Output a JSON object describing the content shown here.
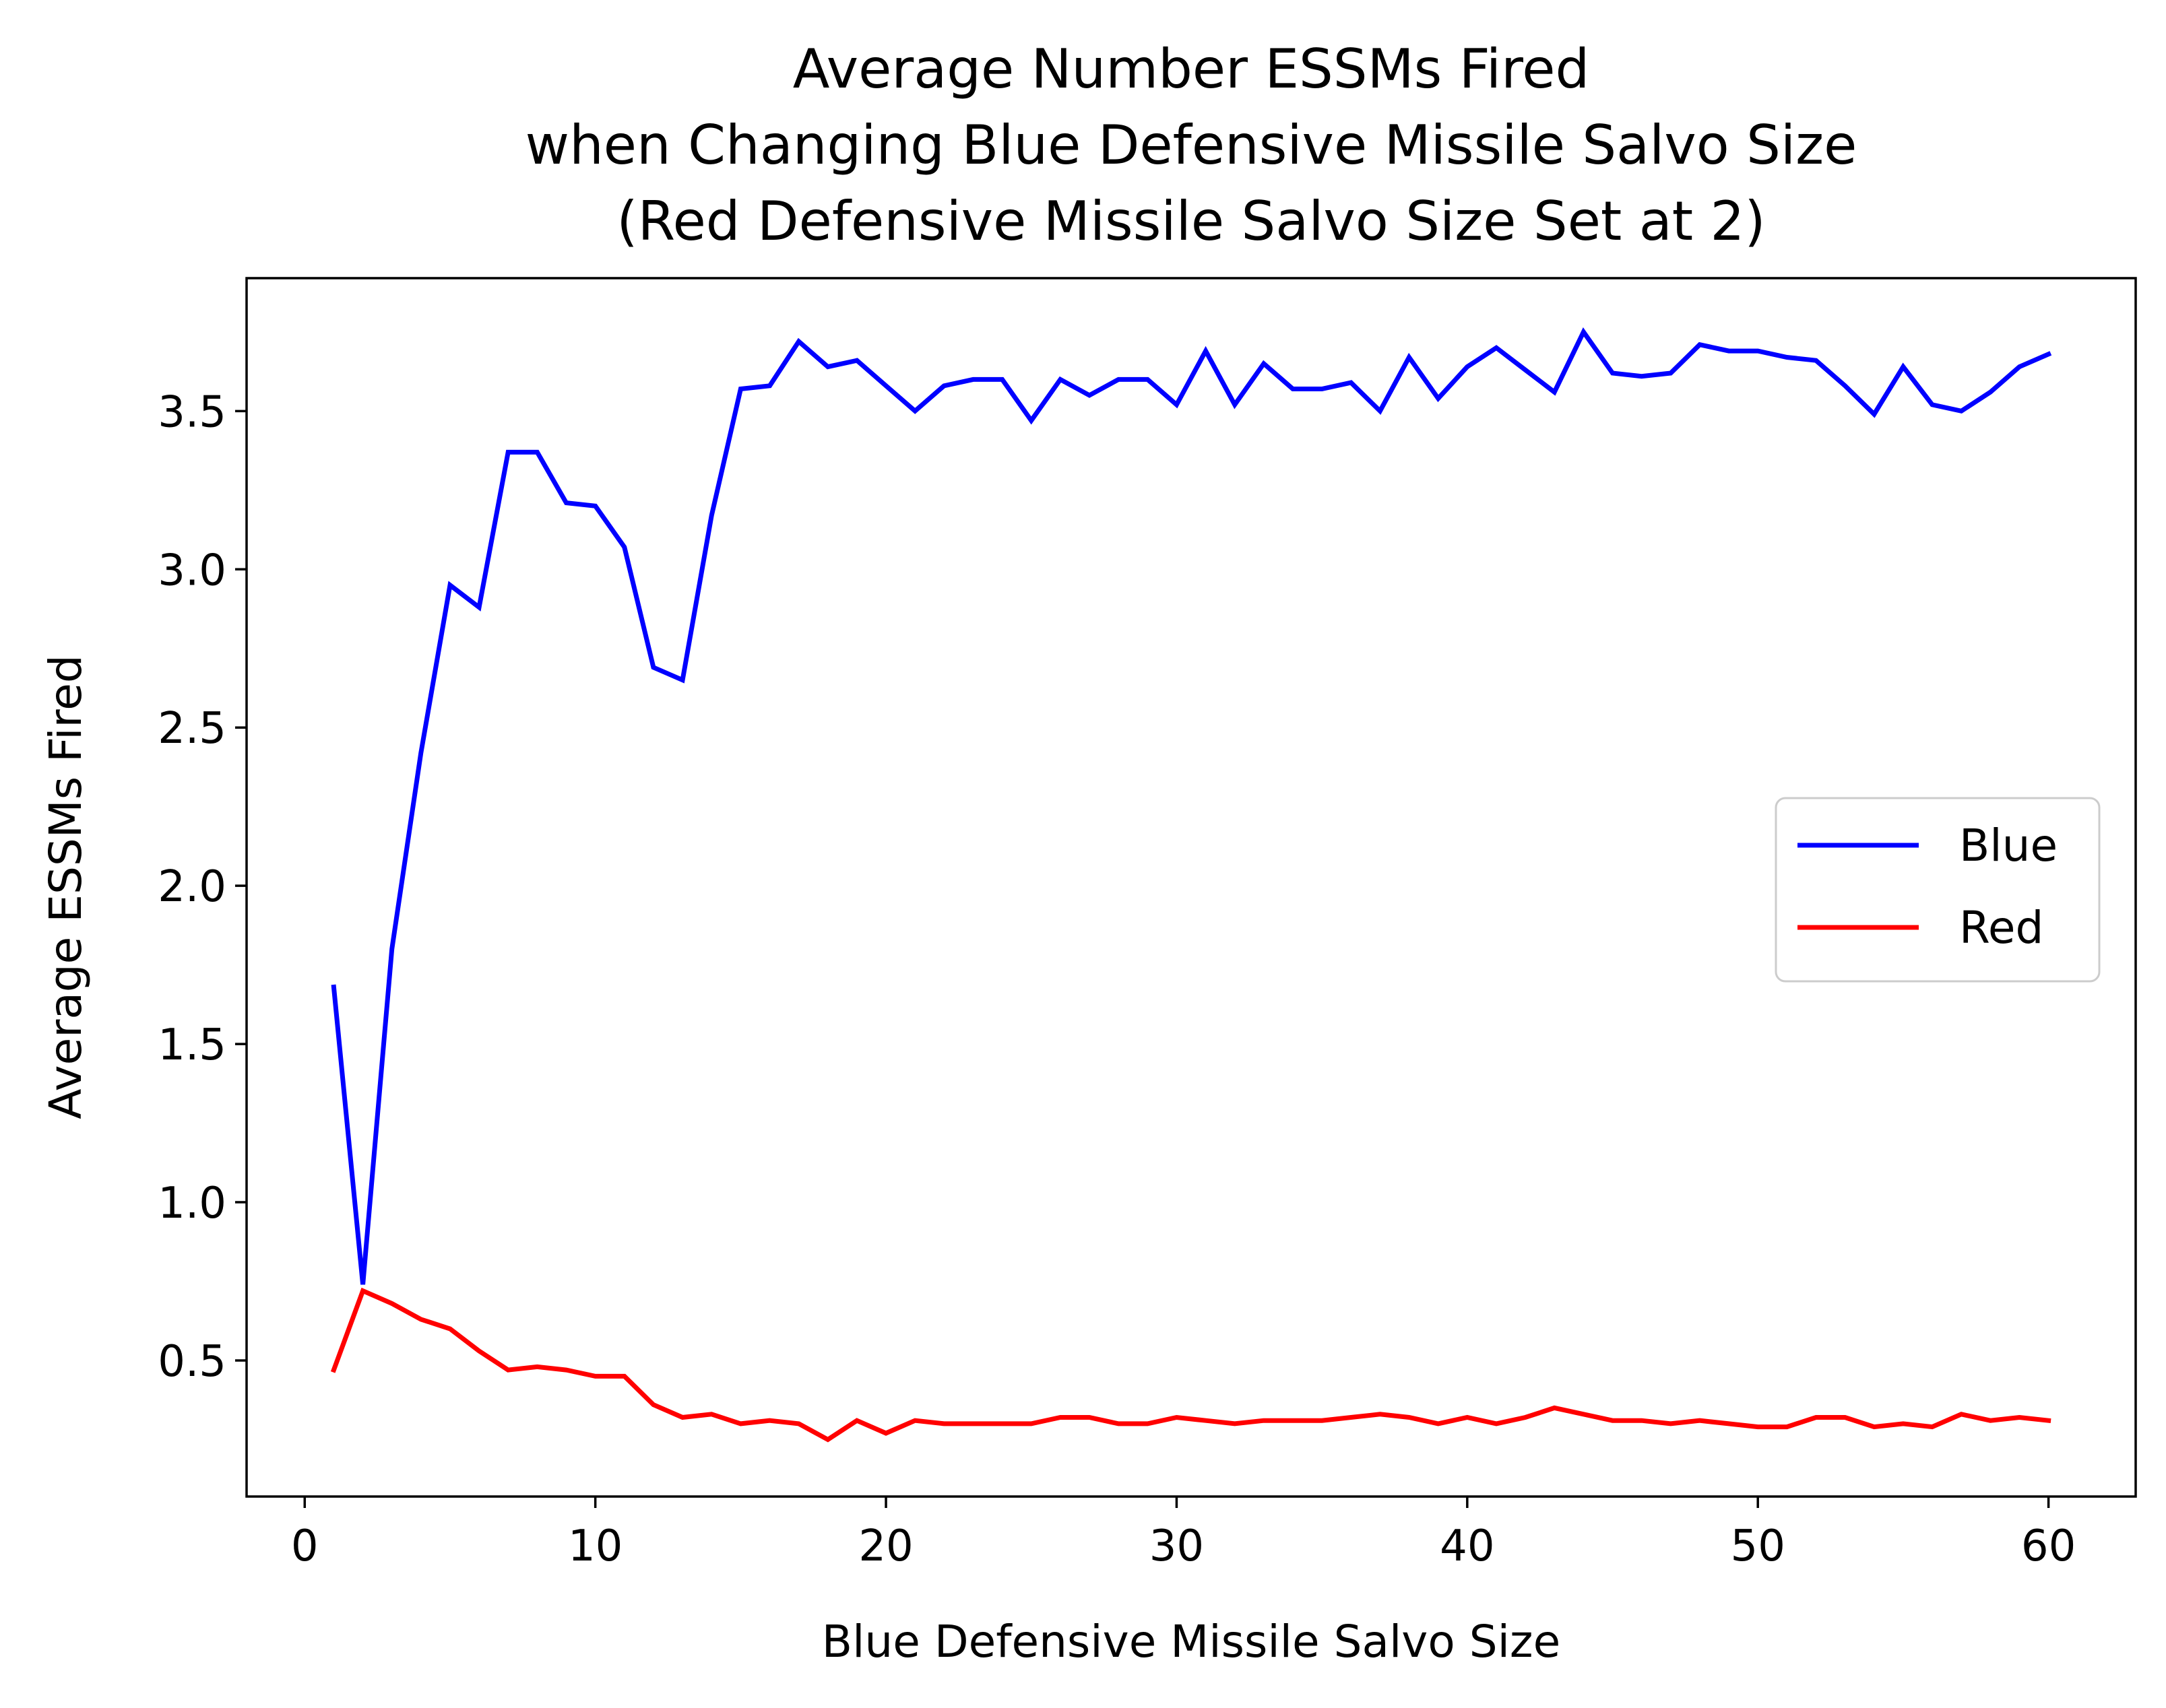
{
  "chart_data": {
    "type": "line",
    "title": [
      "Average Number ESSMs Fired",
      "when Changing Blue Defensive Missile Salvo Size",
      "(Red Defensive Missile Salvo Size Set at 2)"
    ],
    "xlabel": "Blue Defensive Missile Salvo Size",
    "ylabel": "Average ESSMs Fired",
    "xlim": [
      -2,
      63
    ],
    "ylim": [
      0.07,
      3.92
    ],
    "xticks": [
      0,
      10,
      20,
      30,
      40,
      50,
      60
    ],
    "xtick_labels": [
      "0",
      "10",
      "20",
      "30",
      "40",
      "50",
      "60"
    ],
    "yticks": [
      0.5,
      1.0,
      1.5,
      2.0,
      2.5,
      3.0,
      3.5
    ],
    "ytick_labels": [
      "0.5",
      "1.0",
      "1.5",
      "2.0",
      "2.5",
      "3.0",
      "3.5"
    ],
    "grid": false,
    "legend_position": "center-right",
    "x": [
      1,
      2,
      3,
      4,
      5,
      6,
      7,
      8,
      9,
      10,
      11,
      12,
      13,
      14,
      15,
      16,
      17,
      18,
      19,
      20,
      21,
      22,
      23,
      24,
      25,
      26,
      27,
      28,
      29,
      30,
      31,
      32,
      33,
      34,
      35,
      36,
      37,
      38,
      39,
      40,
      41,
      42,
      43,
      44,
      45,
      46,
      47,
      48,
      49,
      50,
      51,
      52,
      53,
      54,
      55,
      56,
      57,
      58,
      59,
      60
    ],
    "series": [
      {
        "name": "Blue",
        "color": "#0000ff",
        "values": [
          1.68,
          0.74,
          1.8,
          2.42,
          2.95,
          2.88,
          3.37,
          3.37,
          3.21,
          3.2,
          3.07,
          2.69,
          2.65,
          3.17,
          3.57,
          3.58,
          3.72,
          3.64,
          3.66,
          3.58,
          3.5,
          3.58,
          3.6,
          3.6,
          3.47,
          3.6,
          3.55,
          3.6,
          3.6,
          3.52,
          3.69,
          3.52,
          3.65,
          3.57,
          3.57,
          3.59,
          3.5,
          3.67,
          3.54,
          3.64,
          3.7,
          3.63,
          3.56,
          3.75,
          3.62,
          3.61,
          3.62,
          3.71,
          3.69,
          3.69,
          3.67,
          3.66,
          3.58,
          3.49,
          3.64,
          3.52,
          3.5,
          3.56,
          3.64,
          3.68
        ]
      },
      {
        "name": "Red",
        "color": "#ff0000",
        "values": [
          0.47,
          0.72,
          0.68,
          0.63,
          0.6,
          0.53,
          0.47,
          0.48,
          0.47,
          0.45,
          0.45,
          0.36,
          0.32,
          0.33,
          0.3,
          0.31,
          0.3,
          0.25,
          0.31,
          0.27,
          0.31,
          0.3,
          0.3,
          0.3,
          0.3,
          0.32,
          0.32,
          0.3,
          0.3,
          0.32,
          0.31,
          0.3,
          0.31,
          0.31,
          0.31,
          0.32,
          0.33,
          0.32,
          0.3,
          0.32,
          0.3,
          0.32,
          0.35,
          0.33,
          0.31,
          0.31,
          0.3,
          0.31,
          0.3,
          0.29,
          0.29,
          0.32,
          0.32,
          0.29,
          0.3,
          0.29,
          0.33,
          0.31,
          0.32,
          0.31
        ]
      }
    ]
  }
}
